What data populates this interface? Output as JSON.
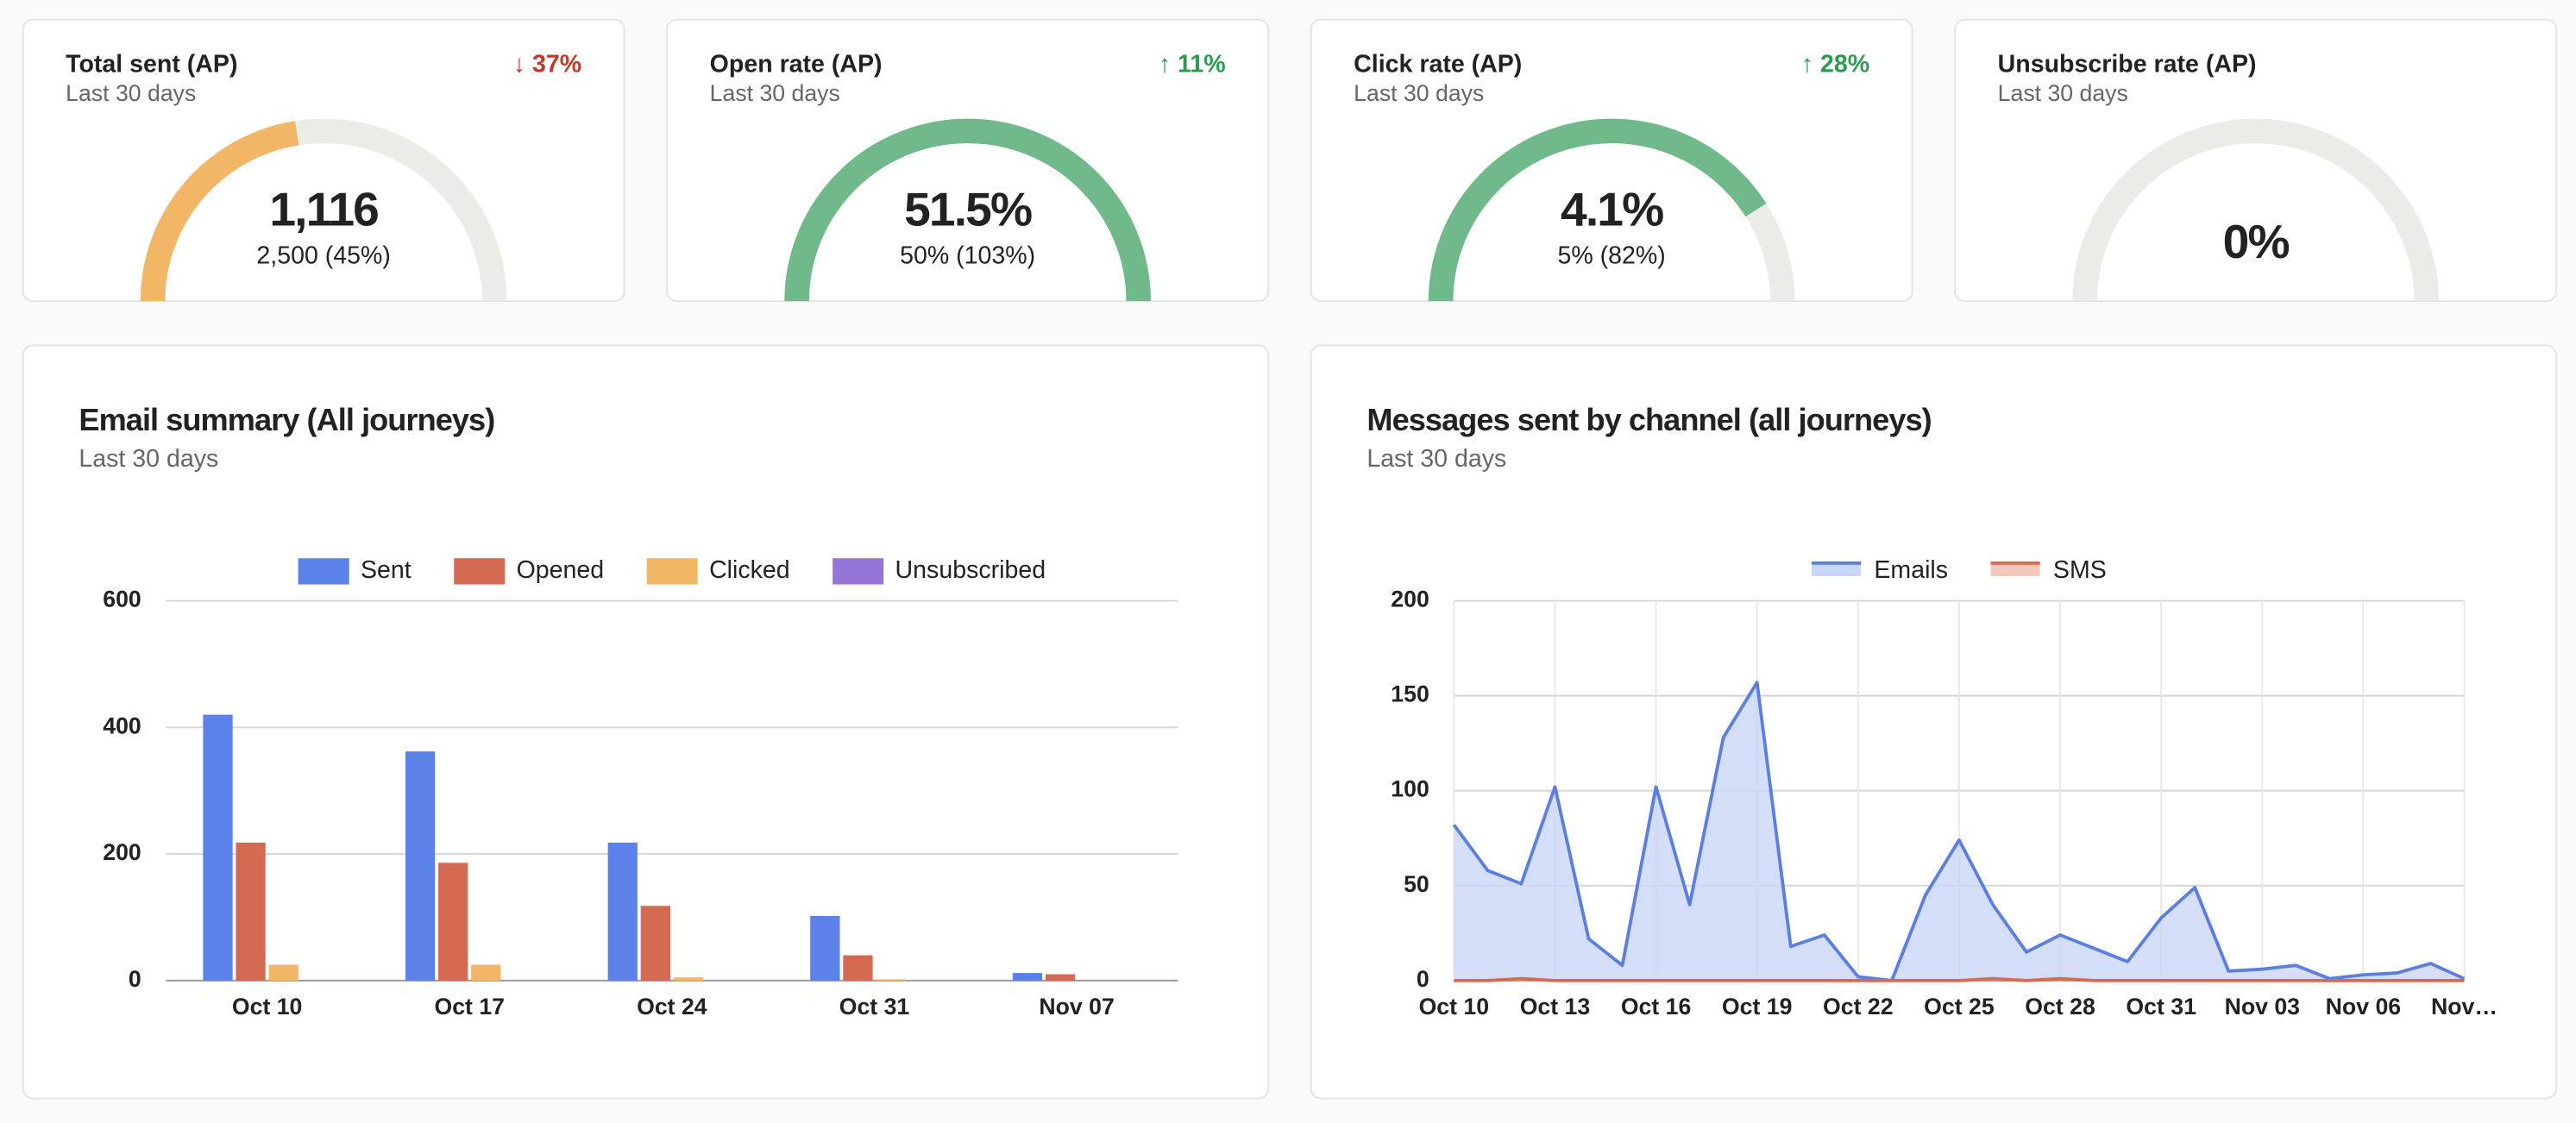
{
  "kpis": [
    {
      "title": "Total sent (AP)",
      "subtitle": "Last 30 days",
      "change": "↓ 37%",
      "change_color": "#c0392b",
      "value": "1,116",
      "detail": "2,500 (45%)",
      "gauge": 45,
      "gauge_color": "#f2b766"
    },
    {
      "title": "Open rate (AP)",
      "subtitle": "Last 30 days",
      "change": "↑ 11%",
      "change_color": "#2e9a4e",
      "value": "51.5%",
      "detail": "50% (103%)",
      "gauge": 100,
      "gauge_color": "#6fb98a"
    },
    {
      "title": "Click rate (AP)",
      "subtitle": "Last 30 days",
      "change": "↑ 28%",
      "change_color": "#2e9a4e",
      "value": "4.1%",
      "detail": "5% (82%)",
      "gauge": 82,
      "gauge_color": "#6fb98a"
    },
    {
      "title": "Unsubscribe rate (AP)",
      "subtitle": "Last 30 days",
      "value": "0%",
      "gauge": 0,
      "gauge_color": "#6fb98a"
    }
  ],
  "chart_data": [
    {
      "type": "bar",
      "title": "Email summary (All journeys)",
      "subtitle": "Last 30 days",
      "categories": [
        "Oct 10",
        "Oct 17",
        "Oct 24",
        "Oct 31",
        "Nov 07"
      ],
      "series": [
        {
          "name": "Sent",
          "color": "#5b82e8",
          "values": [
            420,
            362,
            218,
            102,
            12
          ]
        },
        {
          "name": "Opened",
          "color": "#d46a52",
          "values": [
            218,
            186,
            118,
            40,
            10
          ]
        },
        {
          "name": "Clicked",
          "color": "#f2b766",
          "values": [
            25,
            25,
            5,
            2,
            0
          ]
        },
        {
          "name": "Unsubscribed",
          "color": "#9575d8",
          "values": [
            0,
            0,
            0,
            0,
            0
          ]
        }
      ],
      "ylim": [
        0,
        600
      ],
      "yticks": [
        0,
        200,
        400,
        600
      ],
      "grid": true
    },
    {
      "type": "line",
      "title": "Messages sent by channel (all journeys)",
      "subtitle": "Last 30 days",
      "categories": [
        "Oct 10",
        null,
        null,
        "Oct 13",
        null,
        null,
        "Oct 16",
        null,
        null,
        "Oct 19",
        null,
        null,
        "Oct 22",
        null,
        null,
        "Oct 25",
        null,
        null,
        "Oct 28",
        null,
        null,
        "Oct 31",
        null,
        null,
        "Nov 03",
        null,
        null,
        "Nov 06",
        null,
        null,
        "Nov…"
      ],
      "series": [
        {
          "name": "Emails",
          "color": "#5b7fe0",
          "fill": "#c9d6f7",
          "values": [
            82,
            58,
            51,
            102,
            22,
            8,
            102,
            40,
            128,
            157,
            18,
            24,
            2,
            0,
            45,
            74,
            40,
            15,
            24,
            17,
            10,
            33,
            49,
            5,
            6,
            8,
            1,
            3,
            4,
            9,
            1
          ]
        },
        {
          "name": "SMS",
          "color": "#d9694f",
          "fill": "#f3c9be",
          "values": [
            0,
            0,
            1,
            0,
            0,
            0,
            0,
            0,
            0,
            0,
            0,
            0,
            0,
            0,
            0,
            0,
            1,
            0,
            1,
            0,
            0,
            0,
            0,
            0,
            0,
            0,
            0,
            0,
            0,
            0,
            0
          ]
        }
      ],
      "ylim": [
        0,
        200
      ],
      "yticks": [
        0,
        50,
        100,
        150,
        200
      ],
      "grid": true,
      "area": true
    }
  ]
}
